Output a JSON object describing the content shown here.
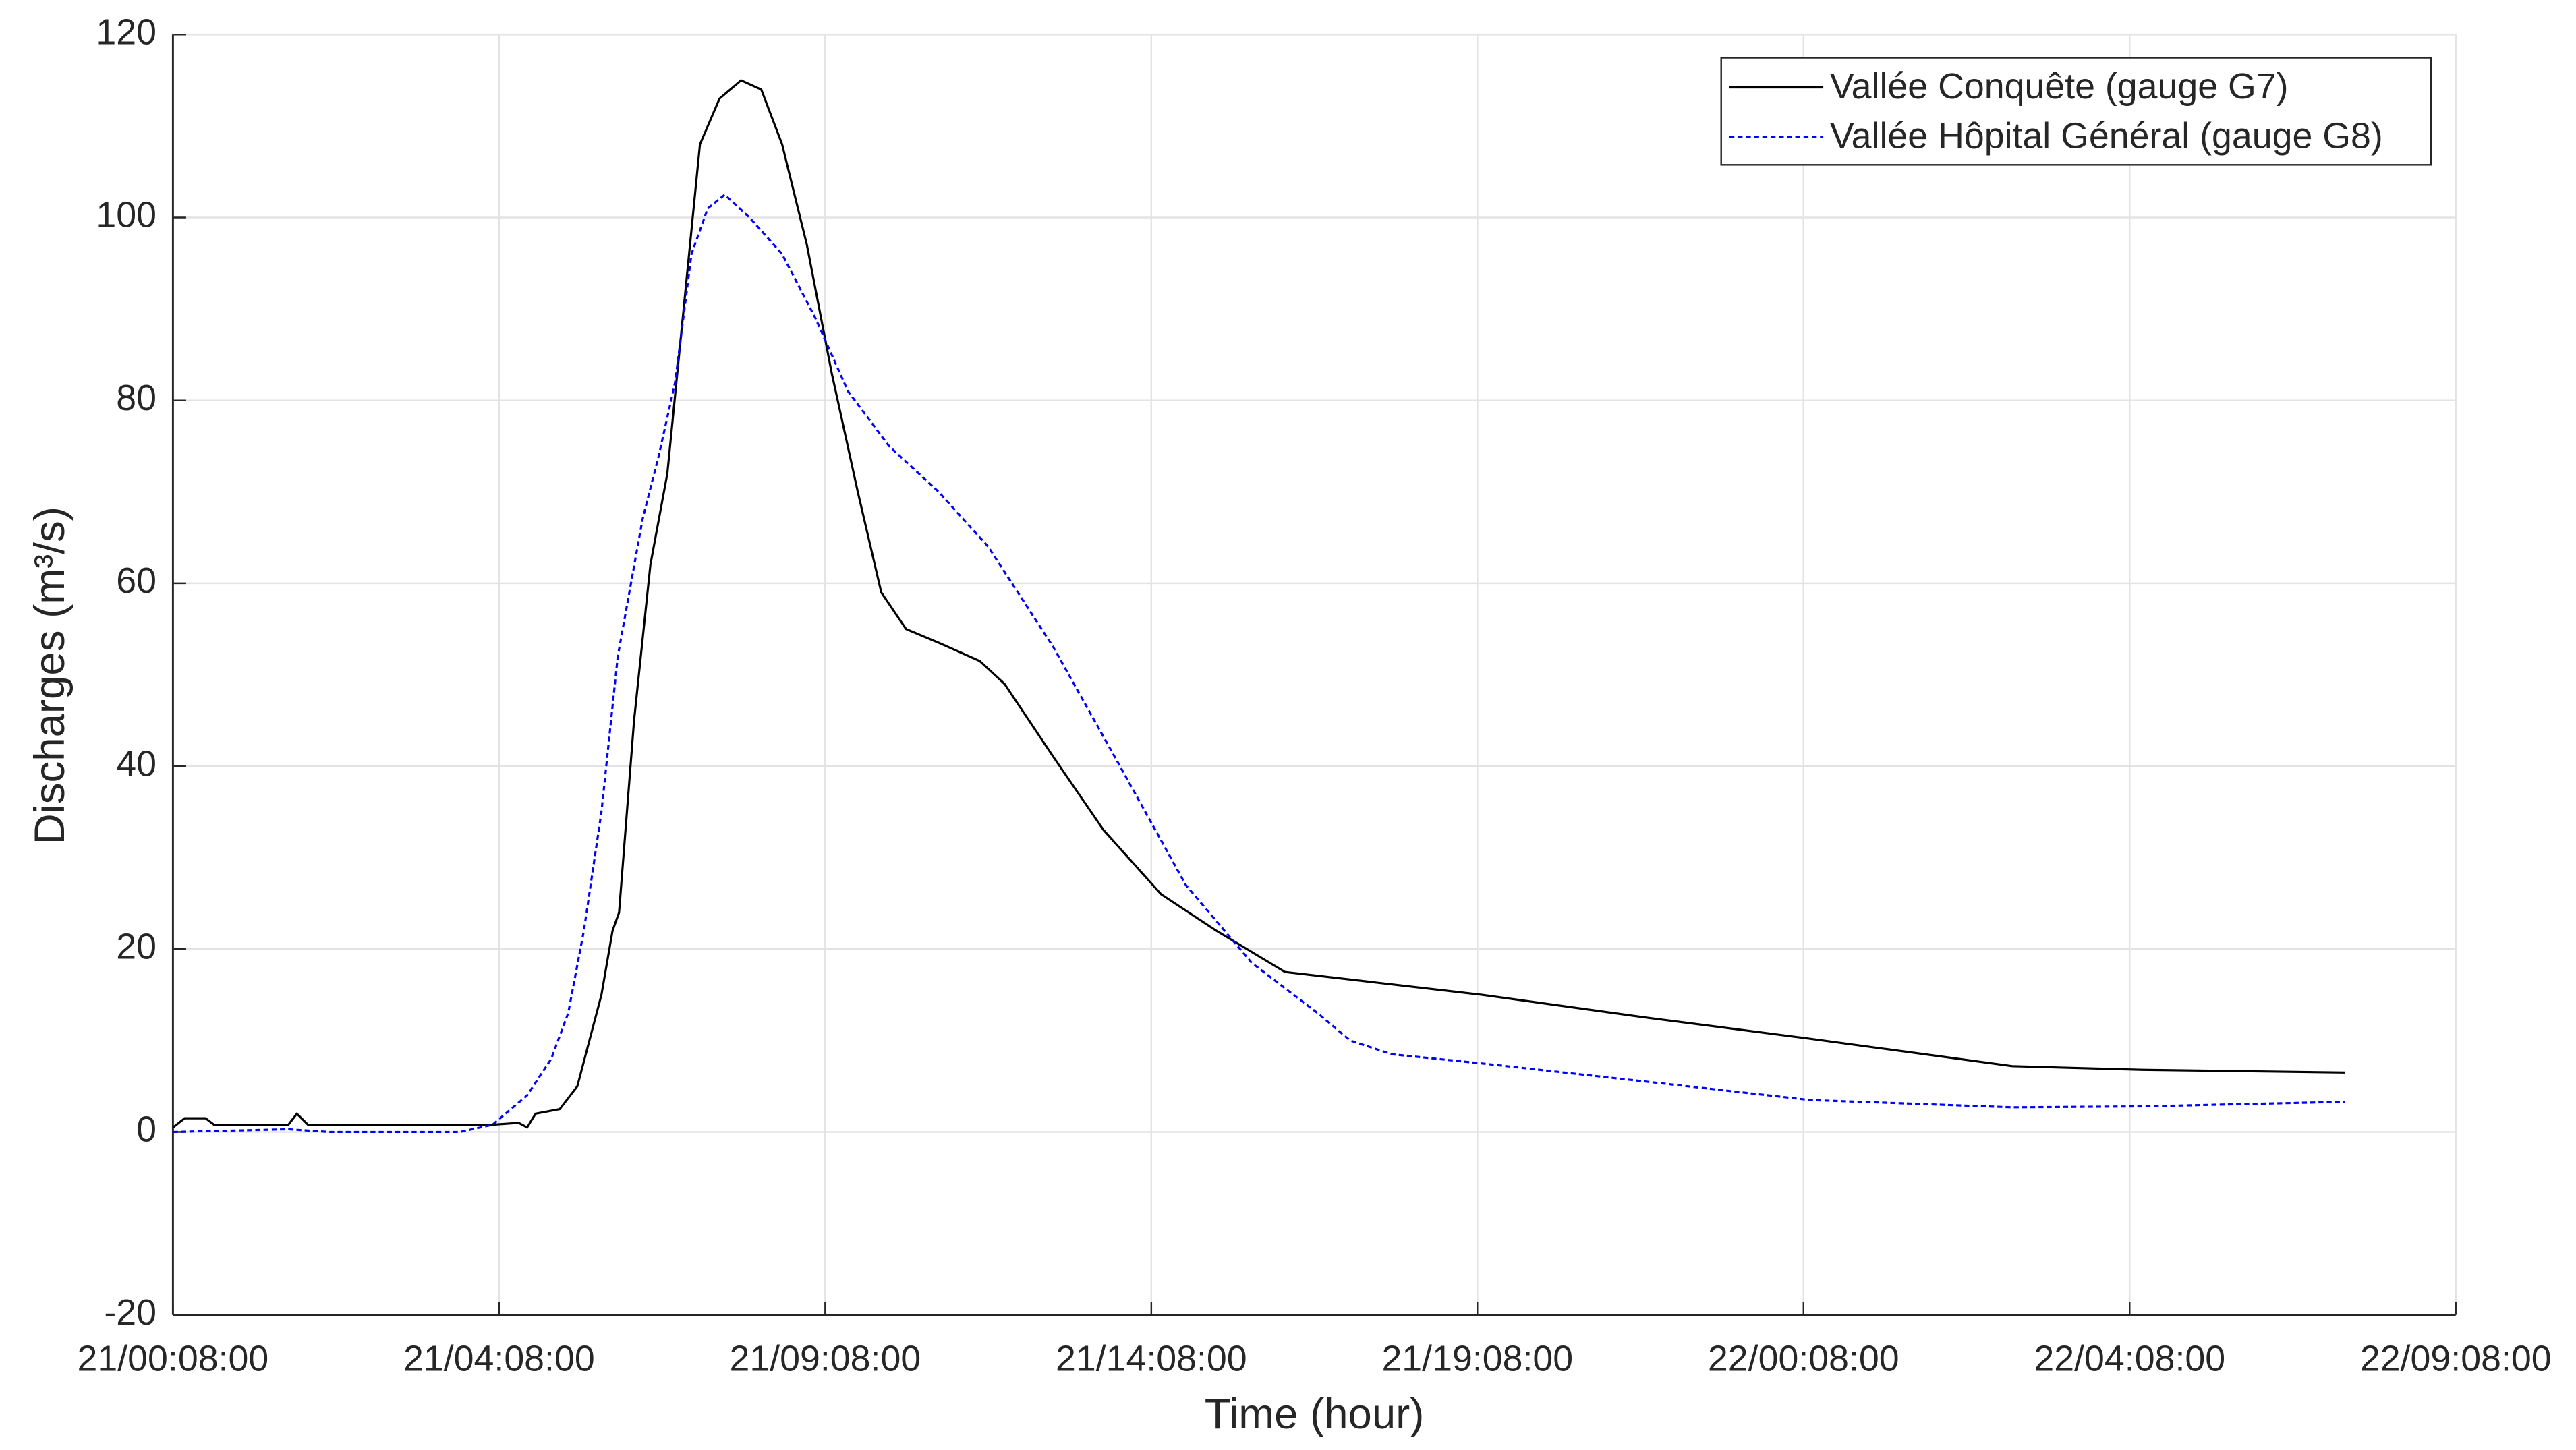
{
  "chart_data": {
    "type": "line",
    "xlabel": "Time (hour)",
    "ylabel": "Discharges (m³/s)",
    "xlim": [
      0,
      35
    ],
    "xticks": [
      {
        "value": 0,
        "label": "21/00:08:00"
      },
      {
        "value": 5,
        "label": "21/04:08:00"
      },
      {
        "value": 10,
        "label": "21/09:08:00"
      },
      {
        "value": 15,
        "label": "21/14:08:00"
      },
      {
        "value": 20,
        "label": "21/19:08:00"
      },
      {
        "value": 25,
        "label": "22/00:08:00"
      },
      {
        "value": 30,
        "label": "22/04:08:00"
      },
      {
        "value": 35,
        "label": "22/09:08:00"
      }
    ],
    "ylim": [
      -20,
      120
    ],
    "yticks": [
      -20,
      0,
      20,
      40,
      60,
      80,
      100,
      120
    ],
    "grid": true,
    "legend": "upper right",
    "series": [
      {
        "name": "Vallée Conquête (gauge G7)",
        "color": "#000000",
        "dash": "solid",
        "x": [
          0,
          0.18,
          0.5,
          0.63,
          1.77,
          1.9,
          2.07,
          4.9,
          5.3,
          5.43,
          5.56,
          5.93,
          6.2,
          6.57,
          6.74,
          6.84,
          7.07,
          7.32,
          7.58,
          7.83,
          8.08,
          8.38,
          8.71,
          9.02,
          9.34,
          9.72,
          10.1,
          10.5,
          10.86,
          11.24,
          11.74,
          12.37,
          12.75,
          13.5,
          14.27,
          15.15,
          16.0,
          17.05,
          20.07,
          22.6,
          25.1,
          28.2,
          30.2,
          33.3
        ],
        "values": [
          0.5,
          1.5,
          1.5,
          0.8,
          0.8,
          2,
          0.8,
          0.8,
          1,
          0.5,
          2,
          2.5,
          5,
          15,
          22,
          24,
          45,
          62,
          72,
          90,
          108,
          113,
          115,
          114,
          108,
          97,
          83,
          70,
          59,
          55,
          53.5,
          51.5,
          49,
          41,
          33,
          26,
          22,
          17.5,
          15,
          12.5,
          10.2,
          7.2,
          6.8,
          6.5
        ]
      },
      {
        "name": "Vallée Hôpital Général (gauge G8)",
        "color": "#0000ff",
        "dash": "dotted",
        "x": [
          0,
          1.77,
          2.4,
          4.4,
          4.9,
          5.43,
          5.8,
          6.06,
          6.3,
          6.57,
          6.82,
          7.2,
          7.45,
          7.7,
          7.95,
          8.2,
          8.46,
          8.84,
          9.34,
          9.85,
          10.35,
          10.98,
          11.74,
          12.5,
          13.5,
          14.52,
          15.53,
          16.54,
          17.55,
          18.05,
          18.69,
          20.07,
          22.6,
          25.1,
          28.2,
          30.2,
          33.3
        ],
        "values": [
          0,
          0.3,
          0,
          0,
          0.8,
          4,
          8,
          13,
          22,
          35,
          52,
          67,
          74,
          82,
          96,
          101,
          102.5,
          100,
          96,
          89,
          81,
          75,
          70,
          64,
          53,
          40,
          27,
          18.5,
          13,
          10,
          8.5,
          7.5,
          5.5,
          3.5,
          2.7,
          2.8,
          3.3
        ]
      }
    ]
  }
}
